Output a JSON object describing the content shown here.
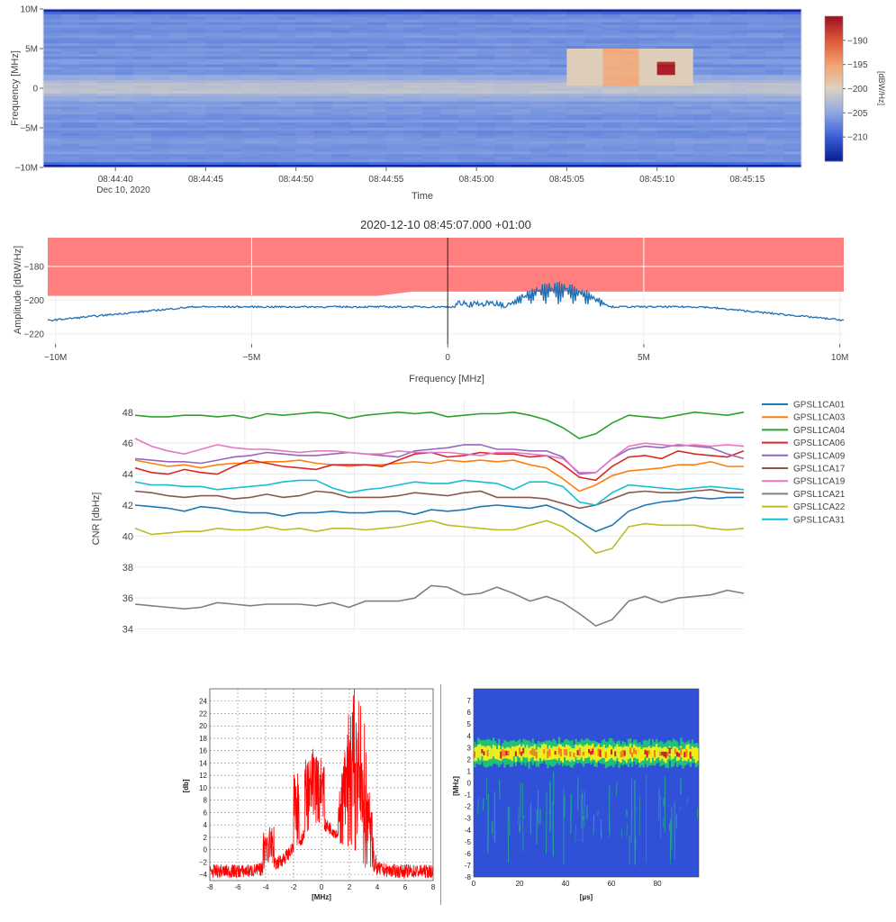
{
  "spectrogram": {
    "y_axis_title": "Frequency [MHz]",
    "y_ticks": [
      "10M",
      "5M",
      "0",
      "−5M",
      "−10M"
    ],
    "y_tick_values": [
      10,
      5,
      0,
      -5,
      -10
    ],
    "x_axis_title": "Time",
    "x_ticks": [
      "08:44:40",
      "08:44:45",
      "08:44:50",
      "08:44:55",
      "08:45:00",
      "08:45:05",
      "08:45:10",
      "08:45:15"
    ],
    "x_tick_seconds": [
      0,
      5,
      10,
      15,
      20,
      25,
      30,
      35
    ],
    "x_date_label": "Dec 10, 2020",
    "time_range_s": [
      -4.0,
      38.0
    ],
    "colorbar_ticks": [
      "−190",
      "−195",
      "−200",
      "−205",
      "−210"
    ],
    "colorbar_tick_values": [
      -190,
      -195,
      -200,
      -205,
      -210
    ],
    "colorbar_title": "[dBW/Hz]",
    "colorbar_range": [
      -215,
      -185
    ],
    "colors": [
      "#0d1e96",
      "#3b62d8",
      "#8fa8e2",
      "#dcd2c0",
      "#f4a270",
      "#dc5a3a",
      "#a11424"
    ]
  },
  "spectrum": {
    "title": "2020-12-10     08:45:07.000 +01:00",
    "y_axis_title": "Amplitude [dBW/Hz]",
    "y_ticks": [
      "−180",
      "−200",
      "−220"
    ],
    "y_tick_values": [
      -180,
      -200,
      -220
    ],
    "y_range": [
      -226,
      -163
    ],
    "x_axis_title": "Frequency [MHz]",
    "x_ticks": [
      "−10M",
      "−5M",
      "0",
      "5M",
      "10M"
    ],
    "x_tick_values": [
      -10,
      -5,
      0,
      5,
      10
    ],
    "x_range": [
      -10.2,
      10.1
    ],
    "threshold_color": "#ff7f7f",
    "line_color": "#1f6fb4"
  },
  "cnr": {
    "y_axis_title": "CNR [dbHz]",
    "y_ticks": [
      "48",
      "46",
      "44",
      "42",
      "40",
      "38",
      "36",
      "34"
    ],
    "y_tick_values": [
      48,
      46,
      44,
      42,
      40,
      38,
      36,
      34
    ],
    "y_range": [
      33.8,
      48.8
    ],
    "x_range": [
      0,
      37
    ],
    "series": [
      {
        "name": "GPSL1CA01",
        "color": "#1f77b4",
        "values": [
          42,
          41.9,
          41.8,
          41.6,
          41.9,
          41.8,
          41.6,
          41.5,
          41.5,
          41.3,
          41.5,
          41.5,
          41.6,
          41.5,
          41.5,
          41.6,
          41.6,
          41.4,
          41.7,
          41.6,
          41.7,
          41.9,
          42,
          41.9,
          41.8,
          42,
          41.6,
          40.9,
          40.3,
          40.7,
          41.6,
          42,
          42.2,
          42.3,
          42.5,
          42.4,
          42.5,
          42.5
        ]
      },
      {
        "name": "GPSL1CA03",
        "color": "#ff7f0e",
        "values": [
          44.9,
          44.7,
          44.5,
          44.6,
          44.4,
          44.6,
          44.7,
          44.7,
          44.8,
          44.8,
          44.9,
          44.7,
          44.6,
          44.5,
          44.6,
          44.6,
          44.7,
          44.8,
          44.7,
          44.9,
          44.8,
          44.9,
          44.8,
          44.9,
          44.6,
          44.4,
          43.7,
          42.9,
          43.3,
          43.9,
          44.2,
          44.3,
          44.4,
          44.6,
          44.6,
          44.8,
          44.5,
          44.5
        ]
      },
      {
        "name": "GPSL1CA04",
        "color": "#2ca02c",
        "values": [
          47.8,
          47.7,
          47.7,
          47.8,
          47.8,
          47.7,
          47.8,
          47.6,
          47.9,
          47.8,
          47.9,
          48,
          47.9,
          47.6,
          47.8,
          47.9,
          48,
          47.9,
          48,
          47.7,
          47.8,
          47.9,
          47.9,
          48,
          47.8,
          47.5,
          47,
          46.3,
          46.6,
          47.3,
          47.8,
          47.7,
          47.6,
          47.8,
          48,
          47.9,
          47.8,
          48
        ]
      },
      {
        "name": "GPSL1CA06",
        "color": "#d62728",
        "values": [
          44.4,
          44.1,
          44,
          44.3,
          44.1,
          44,
          44.5,
          44.9,
          44.7,
          44.5,
          44.4,
          44.3,
          44.6,
          44.6,
          44.6,
          44.5,
          44.9,
          45.3,
          45.4,
          45.1,
          45.2,
          45.4,
          45.3,
          45.3,
          45.1,
          45.2,
          44.6,
          43.8,
          43.6,
          44.5,
          45.1,
          45.2,
          45,
          45.5,
          45.3,
          45.2,
          45.1,
          45.5
        ]
      },
      {
        "name": "GPSL1CA09",
        "color": "#9467bd",
        "values": [
          45,
          44.9,
          44.8,
          44.8,
          44.7,
          44.9,
          45.1,
          45.2,
          45.4,
          45.3,
          45.2,
          45.2,
          45.3,
          45.4,
          45.3,
          45.2,
          45.1,
          45.5,
          45.6,
          45.7,
          45.9,
          45.9,
          45.6,
          45.6,
          45.5,
          45.5,
          45.1,
          44,
          44.1,
          45,
          45.6,
          45.8,
          45.7,
          45.9,
          45.8,
          45.7,
          45.3,
          45
        ]
      },
      {
        "name": "GPSL1CA17",
        "color": "#8c564b",
        "values": [
          42.9,
          42.8,
          42.6,
          42.5,
          42.6,
          42.6,
          42.4,
          42.5,
          42.7,
          42.5,
          42.6,
          42.9,
          42.8,
          42.5,
          42.5,
          42.5,
          42.6,
          42.8,
          42.7,
          42.6,
          42.8,
          42.9,
          42.5,
          42.5,
          42.5,
          42.4,
          42.1,
          41.8,
          42,
          42.4,
          42.8,
          42.9,
          42.8,
          42.8,
          42.9,
          43,
          42.8,
          42.8
        ]
      },
      {
        "name": "GPSL1CA19",
        "color": "#e377c2",
        "values": [
          46.3,
          45.8,
          45.5,
          45.3,
          45.6,
          45.9,
          45.7,
          45.6,
          45.6,
          45.5,
          45.4,
          45.5,
          45.5,
          45.4,
          45.3,
          45.3,
          45.5,
          45.4,
          45.4,
          45.4,
          45.3,
          45.2,
          45.4,
          45.4,
          45.3,
          45.2,
          45,
          44.1,
          44.1,
          45,
          45.8,
          46,
          45.9,
          45.8,
          45.9,
          45.8,
          45.9,
          45.8
        ]
      },
      {
        "name": "GPSL1CA21",
        "color": "#7f7f7f",
        "values": [
          35.6,
          35.5,
          35.4,
          35.3,
          35.4,
          35.7,
          35.6,
          35.5,
          35.6,
          35.6,
          35.6,
          35.5,
          35.7,
          35.4,
          35.8,
          35.8,
          35.8,
          36,
          36.8,
          36.7,
          36.2,
          36.3,
          36.7,
          36.3,
          35.8,
          36.1,
          35.7,
          35,
          34.2,
          34.6,
          35.8,
          36.1,
          35.7,
          36,
          36.1,
          36.2,
          36.5,
          36.3
        ]
      },
      {
        "name": "GPSL1CA22",
        "color": "#bcbd22",
        "values": [
          40.5,
          40.1,
          40.2,
          40.3,
          40.3,
          40.5,
          40.4,
          40.4,
          40.6,
          40.4,
          40.5,
          40.3,
          40.5,
          40.5,
          40.4,
          40.5,
          40.6,
          40.8,
          41,
          40.7,
          40.6,
          40.5,
          40.4,
          40.4,
          40.7,
          41,
          40.6,
          39.9,
          38.9,
          39.2,
          40.6,
          40.8,
          40.7,
          40.7,
          40.7,
          40.5,
          40.4,
          40.5
        ]
      },
      {
        "name": "GPSL1CA31",
        "color": "#17becf",
        "values": [
          43.5,
          43.3,
          43.3,
          43.2,
          43.2,
          43,
          43.1,
          43.2,
          43.3,
          43.5,
          43.6,
          43.6,
          43.1,
          42.8,
          43,
          43.1,
          43.3,
          43.5,
          43.4,
          43.4,
          43.6,
          43.5,
          43.4,
          43,
          43.5,
          43.5,
          43.2,
          42.2,
          42,
          42.8,
          43.3,
          43.2,
          43.1,
          43,
          43.1,
          43.2,
          43.1,
          43
        ]
      }
    ]
  },
  "fft": {
    "y_axis_title": "[db]",
    "y_ticks": [
      "24",
      "22",
      "20",
      "18",
      "16",
      "14",
      "12",
      "10",
      "8",
      "6",
      "4",
      "2",
      "0",
      "−2",
      "−4"
    ],
    "y_tick_values": [
      24,
      22,
      20,
      18,
      16,
      14,
      12,
      10,
      8,
      6,
      4,
      2,
      0,
      -2,
      -4
    ],
    "y_range": [
      -5,
      26
    ],
    "x_axis_title": "[MHz]",
    "x_ticks": [
      "-8",
      "-6",
      "-4",
      "-2",
      "0",
      "2",
      "4",
      "6",
      "8"
    ],
    "x_tick_values": [
      -8,
      -6,
      -4,
      -2,
      0,
      2,
      4,
      6,
      8
    ],
    "x_range": [
      -8,
      8
    ],
    "line_color": "#ff0000"
  },
  "waterfall": {
    "y_axis_title": "[MHz]",
    "y_ticks": [
      "7",
      "6",
      "5",
      "4",
      "3",
      "2",
      "1",
      "0",
      "-1",
      "-2",
      "-3",
      "-4",
      "-5",
      "-6",
      "-7",
      "-8"
    ],
    "y_tick_values": [
      7,
      6,
      5,
      4,
      3,
      2,
      1,
      0,
      -1,
      -2,
      -3,
      -4,
      -5,
      -6,
      -7,
      -8
    ],
    "y_range": [
      -8,
      8
    ],
    "x_axis_title": "[µs]",
    "x_ticks": [
      "0",
      "20",
      "40",
      "60",
      "80"
    ],
    "x_tick_values": [
      0,
      20,
      40,
      60,
      80
    ],
    "x_range": [
      0,
      98
    ],
    "background_color": "#3050d8",
    "colors": [
      "#3050d8",
      "#1ec07a",
      "#f4ef1a",
      "#f08020",
      "#d21f1f"
    ]
  }
}
